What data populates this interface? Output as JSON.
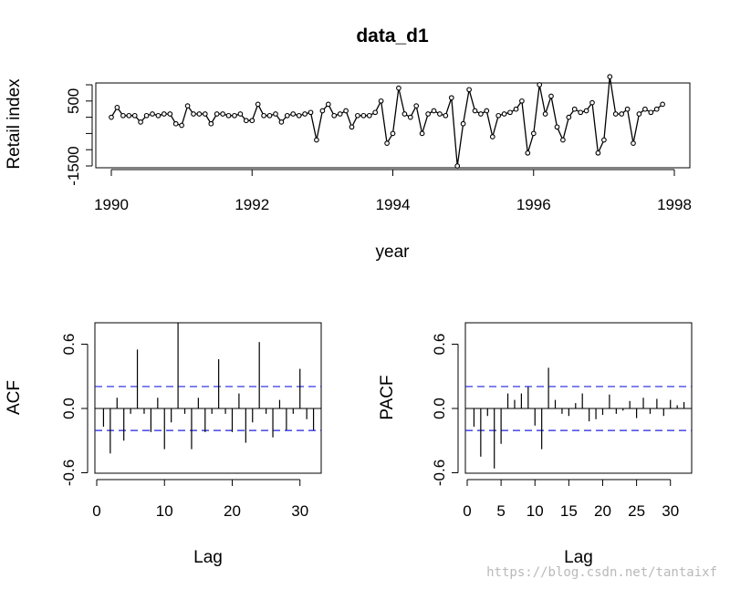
{
  "watermark": "https://blog.csdn.net/tantaixf",
  "chart_data": [
    {
      "id": "series",
      "type": "line",
      "title": "data_d1",
      "xlabel": "year",
      "ylabel": "Retail index",
      "xlim": [
        1990,
        1998
      ],
      "ylim": [
        -1500,
        1000
      ],
      "xticks": [
        1990,
        1992,
        1994,
        1996,
        1998
      ],
      "xtick_labels": [
        "1990",
        "1992",
        "1994",
        "1996",
        "1998"
      ],
      "yticks": [
        -1500,
        -1000,
        -500,
        0,
        500,
        1000
      ],
      "ytick_labels": [
        "-1500",
        "",
        "",
        "",
        "500",
        ""
      ],
      "start": 1990.0,
      "frequency": 12,
      "values": [
        0,
        300,
        50,
        50,
        50,
        -150,
        50,
        100,
        50,
        100,
        100,
        -200,
        -250,
        350,
        100,
        100,
        100,
        -200,
        100,
        100,
        50,
        50,
        100,
        -100,
        -100,
        400,
        50,
        50,
        100,
        -150,
        50,
        100,
        50,
        100,
        150,
        -700,
        200,
        400,
        50,
        100,
        200,
        -300,
        50,
        50,
        50,
        150,
        500,
        -800,
        -500,
        900,
        100,
        0,
        350,
        -500,
        100,
        200,
        100,
        50,
        600,
        -1500,
        -200,
        850,
        200,
        100,
        200,
        -600,
        50,
        100,
        150,
        250,
        500,
        -1100,
        -500,
        1000,
        100,
        650,
        -300,
        -700,
        0,
        250,
        150,
        200,
        450,
        -1100,
        -700,
        1250,
        100,
        100,
        250,
        -800,
        100,
        250,
        150,
        250,
        400
      ]
    },
    {
      "id": "acf",
      "type": "bar",
      "xlabel": "Lag",
      "ylabel": "ACF",
      "xlim": [
        0,
        33
      ],
      "ylim": [
        -0.6,
        0.8
      ],
      "xticks": [
        0,
        10,
        20,
        30
      ],
      "xtick_labels": [
        "0",
        "10",
        "20",
        "30"
      ],
      "yticks": [
        -0.6,
        0.0,
        0.6
      ],
      "ytick_labels": [
        "-0.6",
        "0.0",
        "0.6"
      ],
      "ci": 0.205,
      "lags": [
        1,
        2,
        3,
        4,
        5,
        6,
        7,
        8,
        9,
        10,
        11,
        12,
        13,
        14,
        15,
        16,
        17,
        18,
        19,
        20,
        21,
        22,
        23,
        24,
        25,
        26,
        27,
        28,
        29,
        30,
        31,
        32
      ],
      "values": [
        -0.17,
        -0.42,
        0.1,
        -0.3,
        -0.05,
        0.55,
        -0.05,
        -0.22,
        0.1,
        -0.38,
        -0.13,
        0.8,
        -0.05,
        -0.38,
        0.1,
        -0.22,
        -0.05,
        0.46,
        -0.05,
        -0.22,
        0.14,
        -0.32,
        -0.13,
        0.62,
        -0.05,
        -0.27,
        0.08,
        -0.2,
        -0.05,
        0.37,
        -0.1,
        -0.2
      ]
    },
    {
      "id": "pacf",
      "type": "bar",
      "xlabel": "Lag",
      "ylabel": "PACF",
      "xlim": [
        0,
        33
      ],
      "ylim": [
        -0.6,
        0.8
      ],
      "xticks": [
        0,
        5,
        10,
        15,
        20,
        25,
        30
      ],
      "xtick_labels": [
        "0",
        "5",
        "10",
        "15",
        "20",
        "25",
        "30"
      ],
      "yticks": [
        -0.6,
        0.0,
        0.6
      ],
      "ytick_labels": [
        "-0.6",
        "0.0",
        "0.6"
      ],
      "ci": 0.205,
      "lags": [
        1,
        2,
        3,
        4,
        5,
        6,
        7,
        8,
        9,
        10,
        11,
        12,
        13,
        14,
        15,
        16,
        17,
        18,
        19,
        20,
        21,
        22,
        23,
        24,
        25,
        26,
        27,
        28,
        29,
        30,
        31,
        32
      ],
      "values": [
        -0.17,
        -0.45,
        -0.07,
        -0.56,
        -0.33,
        0.14,
        0.08,
        0.14,
        0.2,
        -0.16,
        -0.38,
        0.38,
        0.08,
        -0.05,
        -0.07,
        0.05,
        0.14,
        -0.12,
        -0.1,
        -0.06,
        0.13,
        -0.05,
        -0.02,
        0.07,
        -0.09,
        0.1,
        -0.05,
        0.09,
        -0.07,
        0.08,
        0.03,
        0.06
      ]
    }
  ]
}
